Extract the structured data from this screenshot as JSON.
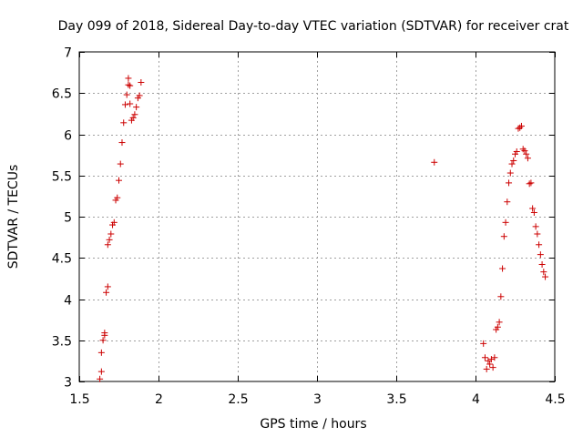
{
  "chart_data": {
    "type": "scatter",
    "title": "Day 099 of 2018, Sidereal Day-to-day VTEC variation (SDTVAR) for receiver crat",
    "xlabel": "GPS time / hours",
    "ylabel": "SDTVAR / TECUs",
    "xlim": [
      1.5,
      4.5
    ],
    "ylim": [
      3,
      7
    ],
    "xticks": [
      1.5,
      2,
      2.5,
      3,
      3.5,
      4,
      4.5
    ],
    "xtick_labels": [
      "1.5",
      "2",
      "2.5",
      "3",
      "3.5",
      "4",
      "4.5"
    ],
    "yticks": [
      3,
      3.5,
      4,
      4.5,
      5,
      5.5,
      6,
      6.5,
      7
    ],
    "ytick_labels": [
      "3",
      "3.5",
      "4",
      "4.5",
      "5",
      "5.5",
      "6",
      "6.5",
      "7"
    ],
    "grid": true,
    "marker": "+",
    "color": "#cc0000",
    "series": [
      {
        "name": "SDTVAR",
        "x": [
          1.63,
          1.64,
          1.64,
          1.65,
          1.66,
          1.66,
          1.67,
          1.68,
          1.68,
          1.69,
          1.7,
          1.71,
          1.72,
          1.73,
          1.74,
          1.75,
          1.76,
          1.77,
          1.78,
          1.79,
          1.8,
          1.81,
          1.81,
          1.82,
          1.82,
          1.83,
          1.84,
          1.85,
          1.86,
          1.87,
          1.88,
          1.89,
          3.74,
          4.05,
          4.06,
          4.07,
          4.08,
          4.09,
          4.1,
          4.11,
          4.12,
          4.13,
          4.14,
          4.15,
          4.16,
          4.17,
          4.18,
          4.19,
          4.2,
          4.21,
          4.22,
          4.23,
          4.24,
          4.25,
          4.26,
          4.27,
          4.28,
          4.29,
          4.3,
          4.31,
          4.32,
          4.33,
          4.34,
          4.35,
          4.36,
          4.37,
          4.38,
          4.39,
          4.4,
          4.41,
          4.42,
          4.43,
          4.44
        ],
        "y": [
          3.03,
          3.12,
          3.35,
          3.5,
          3.56,
          3.59,
          4.08,
          4.15,
          4.66,
          4.72,
          4.79,
          4.9,
          4.93,
          5.2,
          5.23,
          5.44,
          5.64,
          5.9,
          6.14,
          6.36,
          6.48,
          6.68,
          6.6,
          6.59,
          6.37,
          6.17,
          6.2,
          6.24,
          6.33,
          6.44,
          6.47,
          6.63,
          5.66,
          3.46,
          3.29,
          3.15,
          3.25,
          3.21,
          3.27,
          3.17,
          3.29,
          3.63,
          3.66,
          3.72,
          4.03,
          4.37,
          4.76,
          4.93,
          5.18,
          5.41,
          5.53,
          5.64,
          5.68,
          5.76,
          5.79,
          6.07,
          6.08,
          6.1,
          5.82,
          5.8,
          5.76,
          5.71,
          5.4,
          5.41,
          5.1,
          5.05,
          4.88,
          4.79,
          4.66,
          4.54,
          4.42,
          4.33,
          4.27
        ]
      }
    ]
  }
}
